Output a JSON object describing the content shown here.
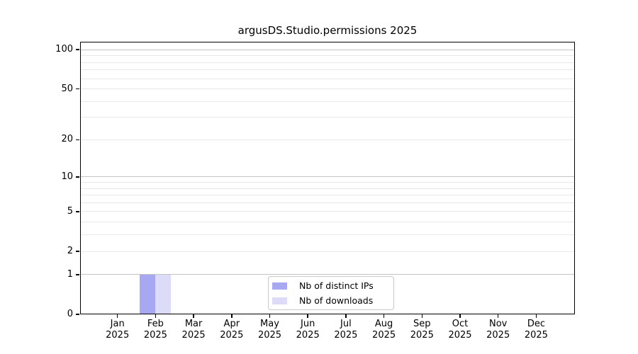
{
  "chart_data": {
    "type": "bar",
    "title": "argusDS.Studio.permissions 2025",
    "x_labels": [
      {
        "month": "Jan",
        "year": "2025"
      },
      {
        "month": "Feb",
        "year": "2025"
      },
      {
        "month": "Mar",
        "year": "2025"
      },
      {
        "month": "Apr",
        "year": "2025"
      },
      {
        "month": "May",
        "year": "2025"
      },
      {
        "month": "Jun",
        "year": "2025"
      },
      {
        "month": "Jul",
        "year": "2025"
      },
      {
        "month": "Aug",
        "year": "2025"
      },
      {
        "month": "Sep",
        "year": "2025"
      },
      {
        "month": "Oct",
        "year": "2025"
      },
      {
        "month": "Nov",
        "year": "2025"
      },
      {
        "month": "Dec",
        "year": "2025"
      }
    ],
    "series": [
      {
        "name": "Nb of distinct IPs",
        "color": "#a7a7f2",
        "values": [
          0,
          1,
          0,
          0,
          0,
          0,
          0,
          0,
          0,
          0,
          0,
          0
        ]
      },
      {
        "name": "Nb of downloads",
        "color": "#dcdcf9",
        "values": [
          0,
          1,
          0,
          0,
          0,
          0,
          0,
          0,
          0,
          0,
          0,
          0
        ]
      }
    ],
    "y_axis": {
      "scale": "log10(1+y)",
      "ticks": [
        0,
        1,
        2,
        5,
        10,
        20,
        50,
        100
      ],
      "ylim": [
        0,
        115
      ],
      "major_gridlines": [
        1,
        10,
        100
      ],
      "minor_gridlines": [
        2,
        3,
        4,
        5,
        6,
        7,
        8,
        9,
        20,
        30,
        40,
        50,
        60,
        70,
        80,
        90
      ]
    },
    "legend": {
      "position": "bottom-center"
    },
    "grid": true
  },
  "colors": {
    "background": "#ffffff",
    "frame": "#000000",
    "text": "#000000",
    "major_gridline": "#c3c3c3",
    "minor_gridline": "#e9e9e9",
    "legend_border": "#c9c9c9"
  }
}
